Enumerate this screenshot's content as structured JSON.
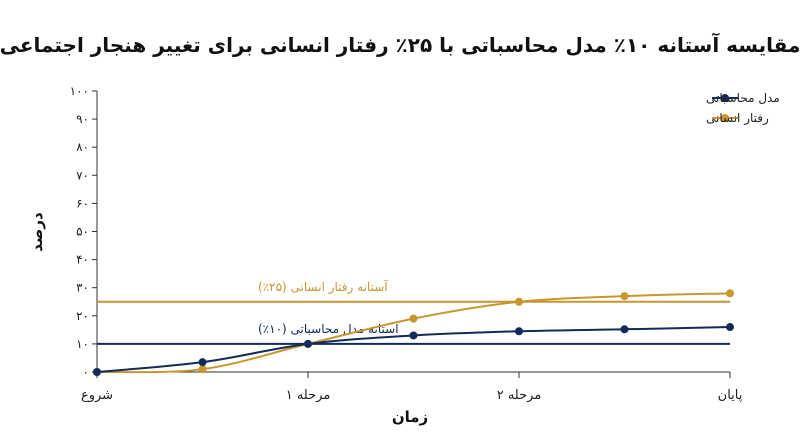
{
  "chart_data": {
    "type": "line",
    "title": "مقایسه آستانه ۱۰٪ مدل محاسباتی با ۲۵٪ رفتار انسانی برای تغییر هنجار اجتماعی",
    "xlabel": "زمان",
    "ylabel": "درصد",
    "x_ticks": [
      "شروع",
      "مرحله ۱",
      "مرحله ۲",
      "پایان"
    ],
    "x_tick_positions": [
      0,
      1,
      2,
      3
    ],
    "y_ticks": [
      "۰",
      "۱۰",
      "۲۰",
      "۳۰",
      "۴۰",
      "۵۰",
      "۶۰",
      "۷۰",
      "۸۰",
      "۹۰",
      "۱۰۰"
    ],
    "ylim": [
      0,
      100
    ],
    "xlim": [
      0,
      3
    ],
    "grid": false,
    "legend_position": "top-right",
    "series": [
      {
        "name": "مدل محاسباتی",
        "color": "#132a5a",
        "x": [
          0,
          0.5,
          1,
          1.5,
          2,
          2.5,
          3
        ],
        "values": [
          0,
          3.5,
          10,
          13,
          14.5,
          15.2,
          16
        ]
      },
      {
        "name": "رفتار انسانی",
        "color": "#c9962e",
        "x": [
          0,
          0.5,
          1,
          1.5,
          2,
          2.5,
          3
        ],
        "values": [
          0,
          1,
          10,
          19,
          25,
          27,
          28
        ]
      }
    ],
    "thresholds": [
      {
        "label": "آستانه رفتار انسانی (۲۵٪)",
        "value": 25,
        "color": "#c9962e"
      },
      {
        "label": "آستانه مدل محاسباتی (۱۰٪)",
        "value": 10,
        "color": "#132a5a"
      }
    ]
  }
}
